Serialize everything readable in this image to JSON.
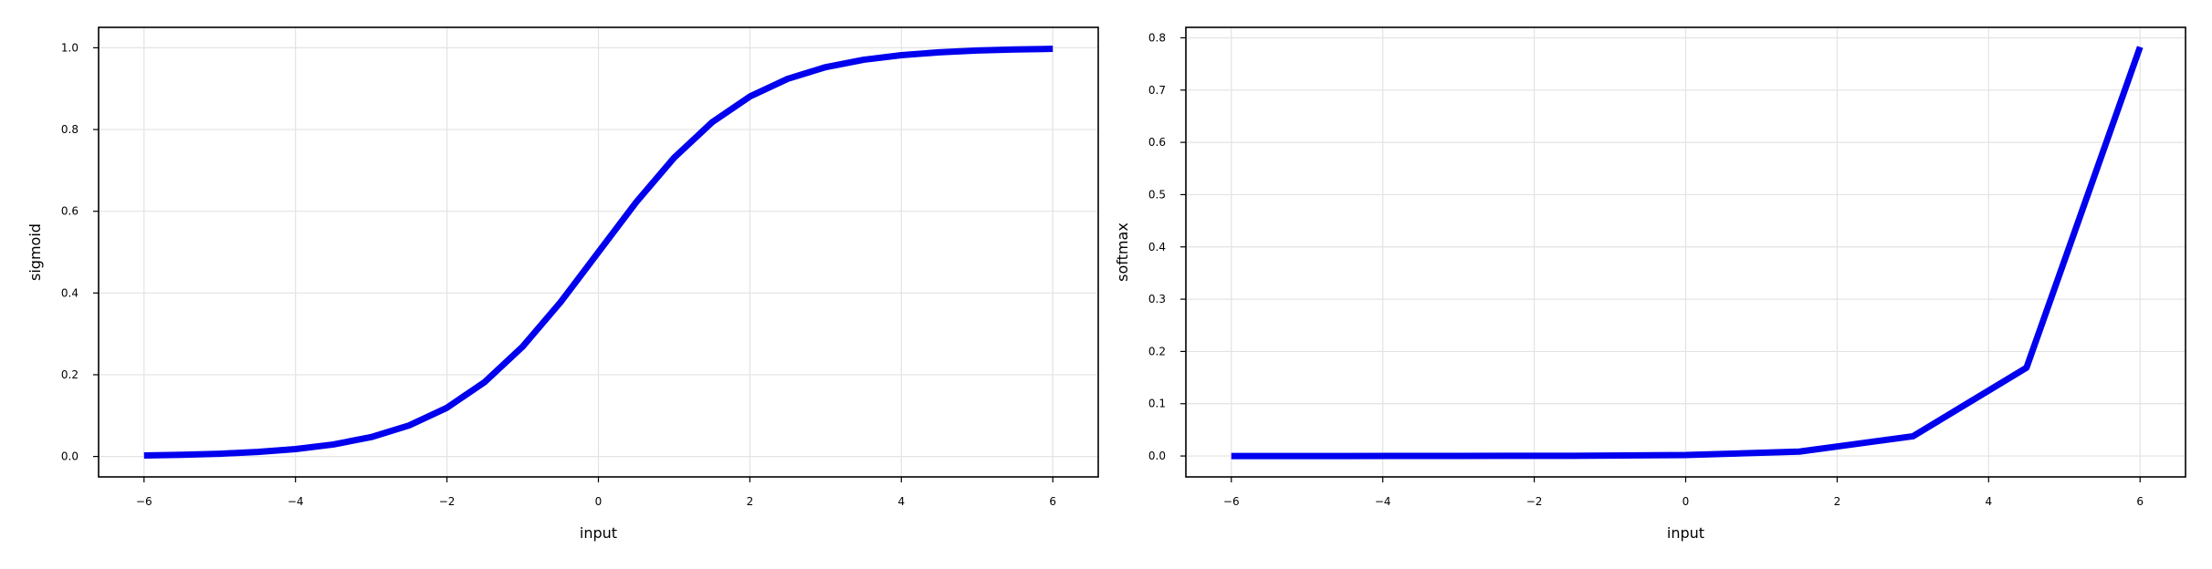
{
  "chart_data": [
    {
      "type": "line",
      "title": "",
      "xlabel": "input",
      "ylabel": "sigmoid",
      "xlim": [
        -6.6,
        6.6
      ],
      "ylim": [
        -0.05,
        1.05
      ],
      "xticks": [
        -6,
        -4,
        -2,
        0,
        2,
        4,
        6
      ],
      "xtick_labels": [
        "−6",
        "−4",
        "−2",
        "0",
        "2",
        "4",
        "6"
      ],
      "yticks": [
        0.0,
        0.2,
        0.4,
        0.6,
        0.8,
        1.0
      ],
      "ytick_labels": [
        "0.0",
        "0.2",
        "0.4",
        "0.6",
        "0.8",
        "1.0"
      ],
      "grid": true,
      "series": [
        {
          "color": "#0000ee",
          "x": [
            -6,
            -5.5,
            -5,
            -4.5,
            -4,
            -3.5,
            -3,
            -2.5,
            -2,
            -1.5,
            -1,
            -0.5,
            0,
            0.5,
            1,
            1.5,
            2,
            2.5,
            3,
            3.5,
            4,
            4.5,
            5,
            5.5,
            6
          ],
          "y": [
            0.0025,
            0.0041,
            0.0067,
            0.011,
            0.018,
            0.0293,
            0.0474,
            0.0759,
            0.1192,
            0.1824,
            0.2689,
            0.3775,
            0.5,
            0.6225,
            0.7311,
            0.8176,
            0.8808,
            0.9241,
            0.9526,
            0.9707,
            0.982,
            0.989,
            0.9933,
            0.9959,
            0.9975
          ]
        }
      ]
    },
    {
      "type": "line",
      "title": "",
      "xlabel": "input",
      "ylabel": "softmax",
      "xlim": [
        -6.6,
        6.6
      ],
      "ylim": [
        -0.04,
        0.82
      ],
      "xticks": [
        -6,
        -4,
        -2,
        0,
        2,
        4,
        6
      ],
      "xtick_labels": [
        "−6",
        "−4",
        "−2",
        "0",
        "2",
        "4",
        "6"
      ],
      "yticks": [
        0.0,
        0.1,
        0.2,
        0.3,
        0.4,
        0.5,
        0.6,
        0.7,
        0.8
      ],
      "ytick_labels": [
        "0.0",
        "0.1",
        "0.2",
        "0.3",
        "0.4",
        "0.5",
        "0.6",
        "0.7",
        "0.8"
      ],
      "grid": true,
      "series": [
        {
          "color": "#0000ee",
          "x": [
            -6,
            -4.5,
            -3,
            -1.5,
            0,
            1.5,
            3,
            4.5,
            6
          ],
          "y": [
            0.0,
            0.0,
            0.0001,
            0.0004,
            0.0019,
            0.0084,
            0.0377,
            0.1689,
            0.7825
          ]
        }
      ]
    }
  ]
}
